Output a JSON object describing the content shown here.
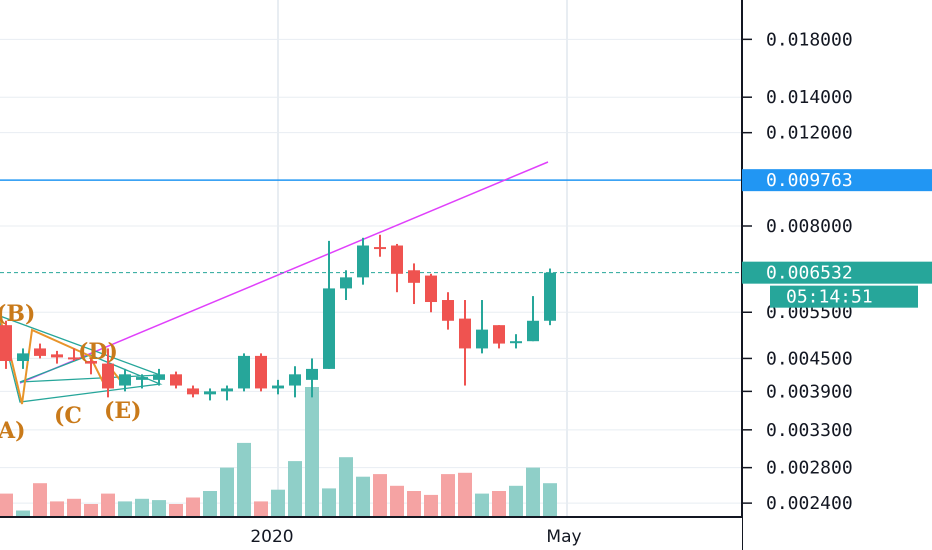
{
  "chart_data": {
    "type": "candlestick",
    "y_scale": "log",
    "ylim": [
      0.0024,
      0.0185
    ],
    "price_ticks": [
      "0.018000",
      "0.014000",
      "0.012000",
      "0.008000",
      "0.005500",
      "0.004500",
      "0.003900",
      "0.003300",
      "0.002800",
      "0.002400"
    ],
    "time_labels": [
      "2020",
      "May"
    ],
    "horizontal_line": {
      "value": 0.009763,
      "label": "0.009763",
      "color": "#2196f3"
    },
    "last_price": {
      "value": 0.006532,
      "label": "0.006532",
      "color": "#26a69a"
    },
    "countdown": "05:14:51",
    "colors": {
      "up": "#26a69a",
      "down": "#ef5350",
      "up_volume": "#8fcfc8",
      "down_volume": "#f5a3a3",
      "grid": "#e8edf2",
      "trendline": "#e040fb",
      "pattern": "#26a69a",
      "wave": "#e8942a",
      "wave_label": "#c97a1a"
    },
    "candles": [
      {
        "o": 0.0052,
        "h": 0.0053,
        "l": 0.0043,
        "c": 0.00445
      },
      {
        "o": 0.00445,
        "h": 0.0047,
        "l": 0.0043,
        "c": 0.0046
      },
      {
        "o": 0.0047,
        "h": 0.0048,
        "l": 0.0045,
        "c": 0.00455
      },
      {
        "o": 0.00458,
        "h": 0.00465,
        "l": 0.0044,
        "c": 0.00452
      },
      {
        "o": 0.00452,
        "h": 0.0047,
        "l": 0.00445,
        "c": 0.0045
      },
      {
        "o": 0.00445,
        "h": 0.0045,
        "l": 0.0042,
        "c": 0.0044
      },
      {
        "o": 0.0044,
        "h": 0.0047,
        "l": 0.0038,
        "c": 0.00395
      },
      {
        "o": 0.004,
        "h": 0.0043,
        "l": 0.0039,
        "c": 0.0042
      },
      {
        "o": 0.0041,
        "h": 0.0042,
        "l": 0.00395,
        "c": 0.00415
      },
      {
        "o": 0.0041,
        "h": 0.0043,
        "l": 0.004,
        "c": 0.0042
      },
      {
        "o": 0.0042,
        "h": 0.00425,
        "l": 0.00395,
        "c": 0.004
      },
      {
        "o": 0.00395,
        "h": 0.004,
        "l": 0.0038,
        "c": 0.00385
      },
      {
        "o": 0.00385,
        "h": 0.00395,
        "l": 0.00375,
        "c": 0.0039
      },
      {
        "o": 0.0039,
        "h": 0.004,
        "l": 0.00375,
        "c": 0.00395
      },
      {
        "o": 0.00395,
        "h": 0.0046,
        "l": 0.0039,
        "c": 0.00455
      },
      {
        "o": 0.00455,
        "h": 0.0046,
        "l": 0.0039,
        "c": 0.00395
      },
      {
        "o": 0.00395,
        "h": 0.0041,
        "l": 0.00385,
        "c": 0.004
      },
      {
        "o": 0.004,
        "h": 0.00435,
        "l": 0.0038,
        "c": 0.0042
      },
      {
        "o": 0.0041,
        "h": 0.0045,
        "l": 0.0038,
        "c": 0.0043
      },
      {
        "o": 0.0043,
        "h": 0.0075,
        "l": 0.0043,
        "c": 0.0061
      },
      {
        "o": 0.0061,
        "h": 0.0066,
        "l": 0.0058,
        "c": 0.0064
      },
      {
        "o": 0.0064,
        "h": 0.0076,
        "l": 0.0062,
        "c": 0.00735
      },
      {
        "o": 0.0073,
        "h": 0.0077,
        "l": 0.007,
        "c": 0.00725
      },
      {
        "o": 0.00735,
        "h": 0.0074,
        "l": 0.006,
        "c": 0.0065
      },
      {
        "o": 0.0066,
        "h": 0.0068,
        "l": 0.0057,
        "c": 0.00625
      },
      {
        "o": 0.00645,
        "h": 0.0065,
        "l": 0.0055,
        "c": 0.00575
      },
      {
        "o": 0.0058,
        "h": 0.006,
        "l": 0.0051,
        "c": 0.0053
      },
      {
        "o": 0.00535,
        "h": 0.0058,
        "l": 0.004,
        "c": 0.0047
      },
      {
        "o": 0.0047,
        "h": 0.0058,
        "l": 0.0046,
        "c": 0.0051
      },
      {
        "o": 0.0052,
        "h": 0.0052,
        "l": 0.0047,
        "c": 0.0048
      },
      {
        "o": 0.00483,
        "h": 0.005,
        "l": 0.0047,
        "c": 0.00485
      },
      {
        "o": 0.00485,
        "h": 0.0059,
        "l": 0.00485,
        "c": 0.0053
      },
      {
        "o": 0.0053,
        "h": 0.00665,
        "l": 0.0052,
        "c": 0.00653
      }
    ],
    "volumes": [
      0.18,
      0.05,
      0.26,
      0.12,
      0.14,
      0.1,
      0.18,
      0.12,
      0.14,
      0.13,
      0.1,
      0.15,
      0.2,
      0.38,
      0.57,
      0.12,
      0.21,
      0.43,
      1.0,
      0.22,
      0.46,
      0.31,
      0.33,
      0.24,
      0.2,
      0.17,
      0.33,
      0.34,
      0.18,
      0.2,
      0.24,
      0.38,
      0.26
    ],
    "wave_labels": [
      "(B)",
      "(D)",
      "A)",
      "(C",
      "(E)"
    ]
  }
}
